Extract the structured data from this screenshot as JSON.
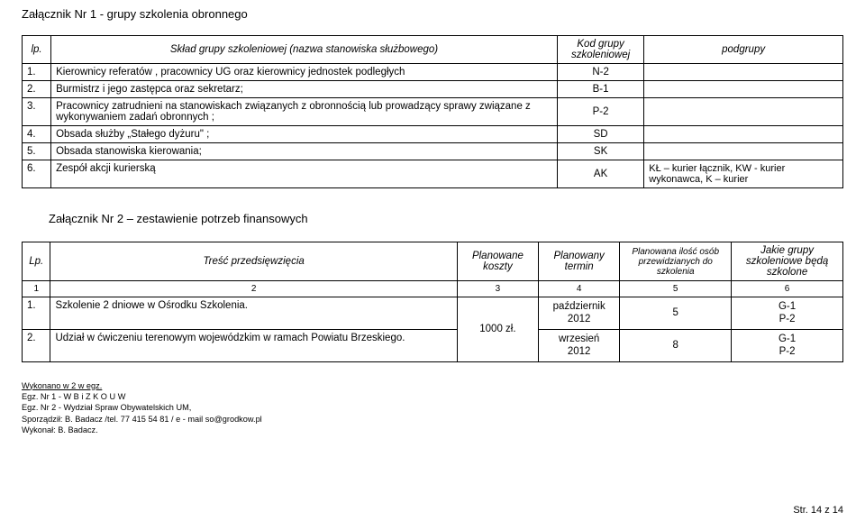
{
  "attachment1_title": "Załącznik Nr 1 - grupy szkolenia obronnego",
  "table1": {
    "headers": {
      "lp": "lp.",
      "desc": "Skład grupy szkoleniowej (nazwa stanowiska służbowego)",
      "code": "Kod grupy szkoleniowej",
      "sub": "podgrupy"
    },
    "rows": [
      {
        "lp": "1.",
        "desc": "Kierownicy referatów , pracownicy UG  oraz kierownicy jednostek podległych",
        "code": "N-2",
        "sub": ""
      },
      {
        "lp": "2.",
        "desc": "Burmistrz i jego zastępca oraz sekretarz;",
        "code": "B-1",
        "sub": ""
      },
      {
        "lp": "3.",
        "desc": "Pracownicy zatrudnieni na stanowiskach związanych z obronnością  lub prowadzący sprawy związane z wykonywaniem zadań obronnych ;",
        "code": "P-2",
        "sub": ""
      },
      {
        "lp": "4.",
        "desc": "Obsada służby „Stałego dyżuru\" ;",
        "code": "SD",
        "sub": ""
      },
      {
        "lp": "5.",
        "desc": "Obsada stanowiska kierowania;",
        "code": "SK",
        "sub": ""
      },
      {
        "lp": "6.",
        "desc": "Zespół akcji kurierską",
        "code": "AK",
        "sub": "KŁ – kurier łącznik, KW - kurier wykonawca, K – kurier"
      }
    ]
  },
  "attachment2_title": "Załącznik Nr 2 – zestawienie potrzeb finansowych",
  "table2": {
    "headers": {
      "lp": "Lp.",
      "desc": "Treść przedsięwzięcia",
      "cost": "Planowane koszty",
      "term": "Planowany termin",
      "ppl": "Planowana ilość osób przewidzianych do szkolenia",
      "grp": "Jakie grupy szkoleniowe będą szkolone"
    },
    "numrow": {
      "c1": "1",
      "c2": "2",
      "c3": "3",
      "c4": "4",
      "c5": "5",
      "c6": "6"
    },
    "cost_merged": "1000 zł.",
    "rows": [
      {
        "lp": "1.",
        "desc": "Szkolenie 2 dniowe w Ośrodku Szkolenia.",
        "term_l1": "październik",
        "term_l2": "2012",
        "ppl": "5",
        "grp_l1": "G-1",
        "grp_l2": "P-2"
      },
      {
        "lp": "2.",
        "desc": "Udział w ćwiczeniu terenowym wojewódzkim w ramach Powiatu Brzeskiego.",
        "term_l1": "wrzesień",
        "term_l2": "2012",
        "ppl": "8",
        "grp_l1": "G-1",
        "grp_l2": "P-2"
      }
    ]
  },
  "footer": {
    "l1": "Wykonano w 2  w egz.",
    "l2": "Egz. Nr 1 -   W B i Z K   O U W",
    "l3": "Egz. Nr 2 -  Wydział Spraw Obywatelskich UM,",
    "l4": "Sporządził: B. Badacz  /tel. 77 415 54 81 /  e - mail  so@grodkow.pl",
    "l5": "Wykonał:   B. Badacz."
  },
  "page_number": "Str. 14 z 14"
}
